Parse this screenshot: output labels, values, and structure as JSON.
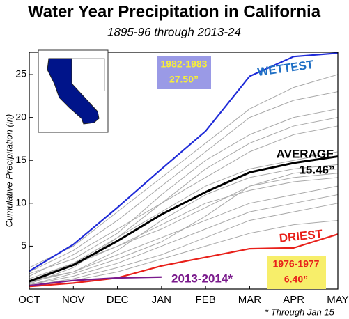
{
  "chart_data": {
    "type": "line",
    "title": "Water Year Precipitation in California",
    "subtitle": "1895-96 through 2013-24",
    "y_label": "Cumulative Precipitation (in)",
    "categories": [
      "OCT",
      "NOV",
      "DEC",
      "JAN",
      "FEB",
      "MAR",
      "APR",
      "MAY"
    ],
    "ylim": [
      0,
      27.6
    ],
    "yticks": [
      5,
      10,
      15,
      20,
      25
    ],
    "series": [
      {
        "color": "#a8a8a8",
        "values": [
          1.5,
          4,
          7,
          10,
          13,
          16,
          18,
          19
        ]
      },
      {
        "color": "#a8a8a8",
        "values": [
          0.5,
          1.5,
          3,
          5,
          7,
          9,
          10,
          11
        ]
      },
      {
        "color": "#a8a8a8",
        "values": [
          1,
          3,
          6,
          10,
          14,
          17,
          19,
          20
        ]
      },
      {
        "color": "#a8a8a8",
        "values": [
          0.8,
          2,
          4,
          6,
          8,
          10,
          11,
          12
        ]
      },
      {
        "color": "#a8a8a8",
        "values": [
          2,
          4.5,
          8,
          12,
          16,
          20,
          22,
          23
        ]
      },
      {
        "color": "#a8a8a8",
        "values": [
          0.3,
          1,
          2,
          3.5,
          5,
          6.5,
          7.5,
          8
        ]
      },
      {
        "color": "#a8a8a8",
        "values": [
          1.2,
          3,
          5,
          7,
          9.5,
          12,
          13,
          13.5
        ]
      },
      {
        "color": "#a8a8a8",
        "values": [
          0.6,
          2.5,
          6,
          9,
          12,
          14,
          15,
          16
        ]
      },
      {
        "color": "#a8a8a8",
        "values": [
          1.8,
          3.5,
          6.5,
          11,
          15,
          18,
          20,
          21
        ]
      },
      {
        "color": "#a8a8a8",
        "values": [
          0.4,
          1.2,
          2.5,
          4,
          6,
          8,
          9,
          10
        ]
      },
      {
        "color": "#a8a8a8",
        "values": [
          1,
          2,
          4.5,
          8,
          11,
          13,
          14,
          14.5
        ]
      },
      {
        "color": "#a8a8a8",
        "values": [
          0.7,
          2.8,
          5,
          7.5,
          10,
          11.5,
          12.5,
          13
        ]
      },
      {
        "color": "#a8a8a8",
        "values": [
          2.5,
          5,
          9,
          13,
          17,
          21,
          23.5,
          25
        ]
      },
      {
        "color": "#a8a8a8",
        "values": [
          0.5,
          1.8,
          3.5,
          5.5,
          8.5,
          12,
          13.5,
          14
        ]
      },
      {
        "name": "WETTEST",
        "color": "#1f2bd8",
        "values": [
          2.1,
          5.2,
          9.5,
          14,
          18.4,
          24.8,
          27.1,
          27.5
        ]
      },
      {
        "name": "AVERAGE",
        "color": "#000000",
        "values": [
          0.9,
          2.8,
          5.6,
          8.7,
          11.3,
          13.6,
          14.7,
          15.46
        ]
      },
      {
        "name": "DRIEST",
        "color": "#e8201a",
        "values": [
          0.3,
          0.7,
          1.3,
          2.7,
          3.7,
          4.7,
          4.8,
          6.4
        ]
      },
      {
        "name": "2013-2014*",
        "color": "#7a1a8c",
        "values": [
          0.4,
          1.0,
          1.3,
          1.4,
          null,
          null,
          null,
          null
        ]
      }
    ],
    "annotations": [
      "1982-1983",
      "27.50”",
      "15.46”",
      "1976-1977",
      "6.40”",
      "* Through Jan 15"
    ]
  }
}
